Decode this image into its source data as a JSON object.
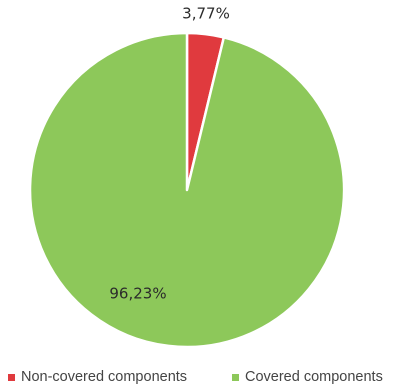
{
  "chart_data": {
    "type": "pie",
    "title": "",
    "slices": [
      {
        "label": "Non-covered components",
        "value": 3.77,
        "display": "3,77%",
        "color": "#e03a3e"
      },
      {
        "label": "Covered components",
        "value": 96.23,
        "display": "96,23%",
        "color": "#8dc85a"
      }
    ],
    "start_angle_deg": 0,
    "direction": "clockwise",
    "slice_border_color": "#ffffff",
    "legend_position": "bottom"
  }
}
